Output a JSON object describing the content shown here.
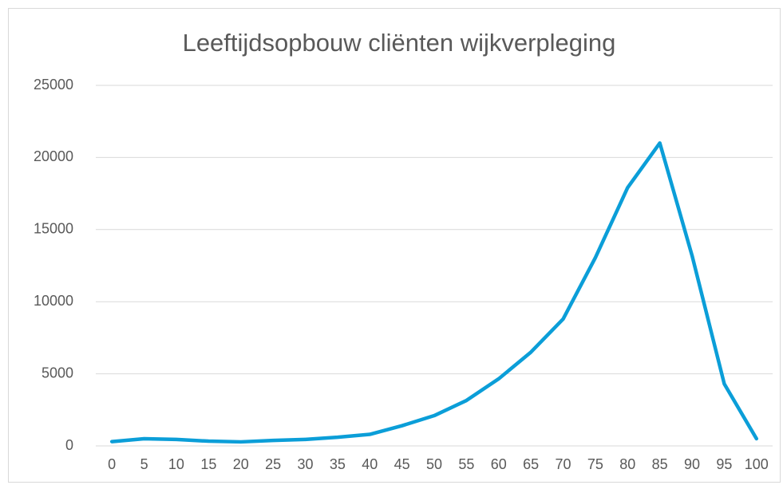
{
  "chart_data": {
    "type": "line",
    "title": "Leeftijdsopbouw cliënten wijkverpleging",
    "categories": [
      "0",
      "5",
      "10",
      "15",
      "20",
      "25",
      "30",
      "35",
      "40",
      "45",
      "50",
      "55",
      "60",
      "65",
      "70",
      "75",
      "80",
      "85",
      "90",
      "95",
      "100"
    ],
    "values": [
      300,
      500,
      450,
      330,
      280,
      380,
      450,
      600,
      800,
      1400,
      2100,
      3150,
      4650,
      6500,
      8800,
      13050,
      17900,
      21000,
      13200,
      4300,
      500
    ],
    "color": "#0b9ed8",
    "ylim": [
      0,
      25000
    ],
    "yticks": [
      0,
      5000,
      10000,
      15000,
      20000,
      25000
    ],
    "grid": true
  }
}
